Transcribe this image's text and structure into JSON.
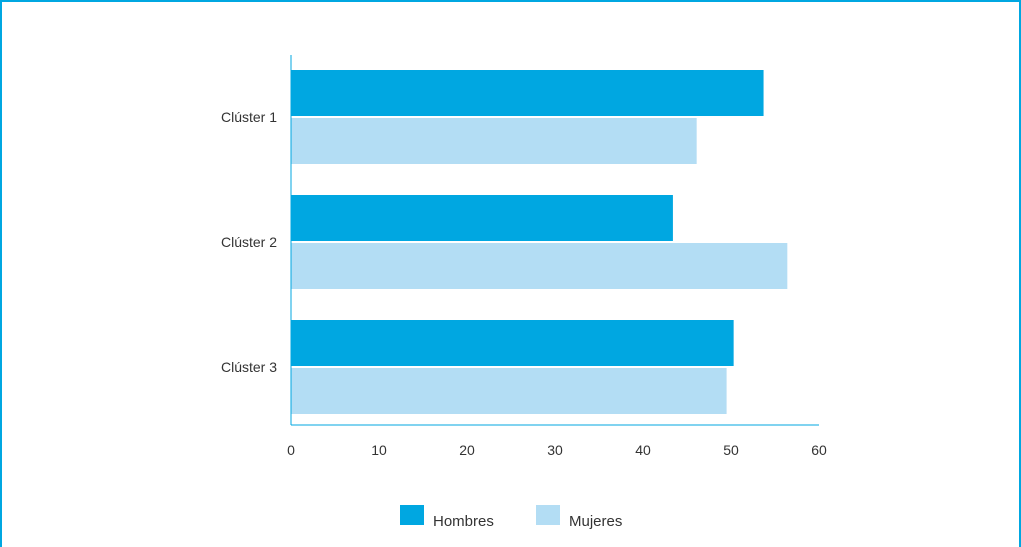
{
  "chart_data": {
    "type": "bar",
    "orientation": "horizontal",
    "categories": [
      "Clúster 1",
      "Clúster 2",
      "Clúster 3"
    ],
    "series": [
      {
        "name": "Hombres",
        "values": [
          53.7,
          43.4,
          50.3
        ],
        "color": "#00a7e1"
      },
      {
        "name": "Mujeres",
        "values": [
          46.1,
          56.4,
          49.5
        ],
        "color": "#b3ddf4"
      }
    ],
    "xlim": [
      0,
      60
    ],
    "xticks": [
      0,
      10,
      20,
      30,
      40,
      50,
      60
    ],
    "grid": false,
    "legend_position": "bottom-center",
    "axis_color": "#00a7e1"
  }
}
